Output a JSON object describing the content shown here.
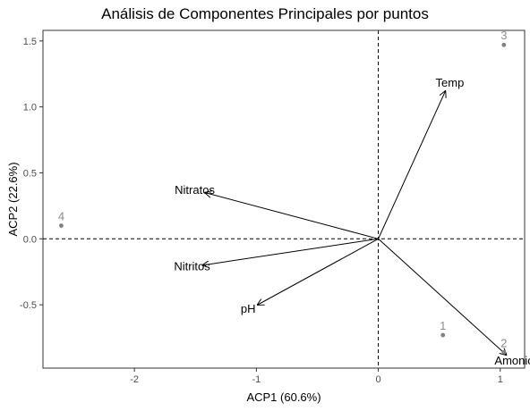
{
  "chart_data": {
    "type": "scatter",
    "title": "Análisis de Componentes Principales por puntos",
    "xlabel": "ACP1 (60.6%)",
    "ylabel": "ACP2 (22.6%)",
    "xlim": [
      -2.75,
      1.2
    ],
    "ylim": [
      -0.98,
      1.58
    ],
    "x_ticks": [
      {
        "value": -2,
        "label": "-2"
      },
      {
        "value": -1,
        "label": "-1"
      },
      {
        "value": 0,
        "label": "0"
      },
      {
        "value": 1,
        "label": "1"
      }
    ],
    "y_ticks": [
      {
        "value": -0.5,
        "label": "-0.5"
      },
      {
        "value": 0.0,
        "label": "0.0"
      },
      {
        "value": 0.5,
        "label": "0.5"
      },
      {
        "value": 1.0,
        "label": "1.0"
      },
      {
        "value": 1.5,
        "label": "1.5"
      }
    ],
    "grid": false,
    "reference_lines": {
      "x": 0,
      "y": 0,
      "style": "dashed"
    },
    "points": [
      {
        "label": "1",
        "x": 0.53,
        "y": -0.73
      },
      {
        "label": "2",
        "x": 1.03,
        "y": -0.86
      },
      {
        "label": "3",
        "x": 1.03,
        "y": 1.47
      },
      {
        "label": "4",
        "x": -2.6,
        "y": 0.1
      }
    ],
    "vectors": [
      {
        "label": "Temp",
        "x": 0.55,
        "y": 1.12
      },
      {
        "label": "Nitratos",
        "x": -1.42,
        "y": 0.35
      },
      {
        "label": "Nitritos",
        "x": -1.44,
        "y": -0.2
      },
      {
        "label": "pH",
        "x": -0.99,
        "y": -0.5
      },
      {
        "label": "Amonio",
        "x": 1.05,
        "y": -0.88
      }
    ],
    "colors": {
      "points": "#808080",
      "point_labels": "#8c8c8c",
      "vectors": "#000000",
      "axis_text": "#4d4d4d"
    }
  }
}
